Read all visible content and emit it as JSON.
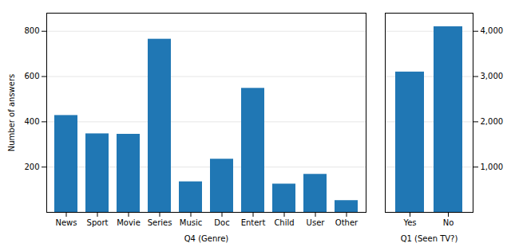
{
  "chart_data": [
    {
      "type": "bar",
      "categories": [
        "News",
        "Sport",
        "Movie",
        "Series",
        "Music",
        "Doc",
        "Entert",
        "Child",
        "User",
        "Other"
      ],
      "values": [
        428,
        347,
        345,
        765,
        135,
        235,
        548,
        125,
        168,
        52
      ],
      "color": "#2077b4",
      "xlabel": "Q4 (Genre)",
      "ylabel": "Number of answers",
      "ylim": [
        0,
        880
      ],
      "yticks": [
        200,
        400,
        600,
        800
      ],
      "grid": true
    },
    {
      "type": "bar",
      "categories": [
        "Yes",
        "No"
      ],
      "values": [
        3100,
        4100
      ],
      "color": "#2077b4",
      "xlabel": "Q1 (Seen TV?)",
      "ylim": [
        0,
        4400
      ],
      "yticks": [
        1000,
        2000,
        3000,
        4000
      ],
      "grid": true
    }
  ]
}
